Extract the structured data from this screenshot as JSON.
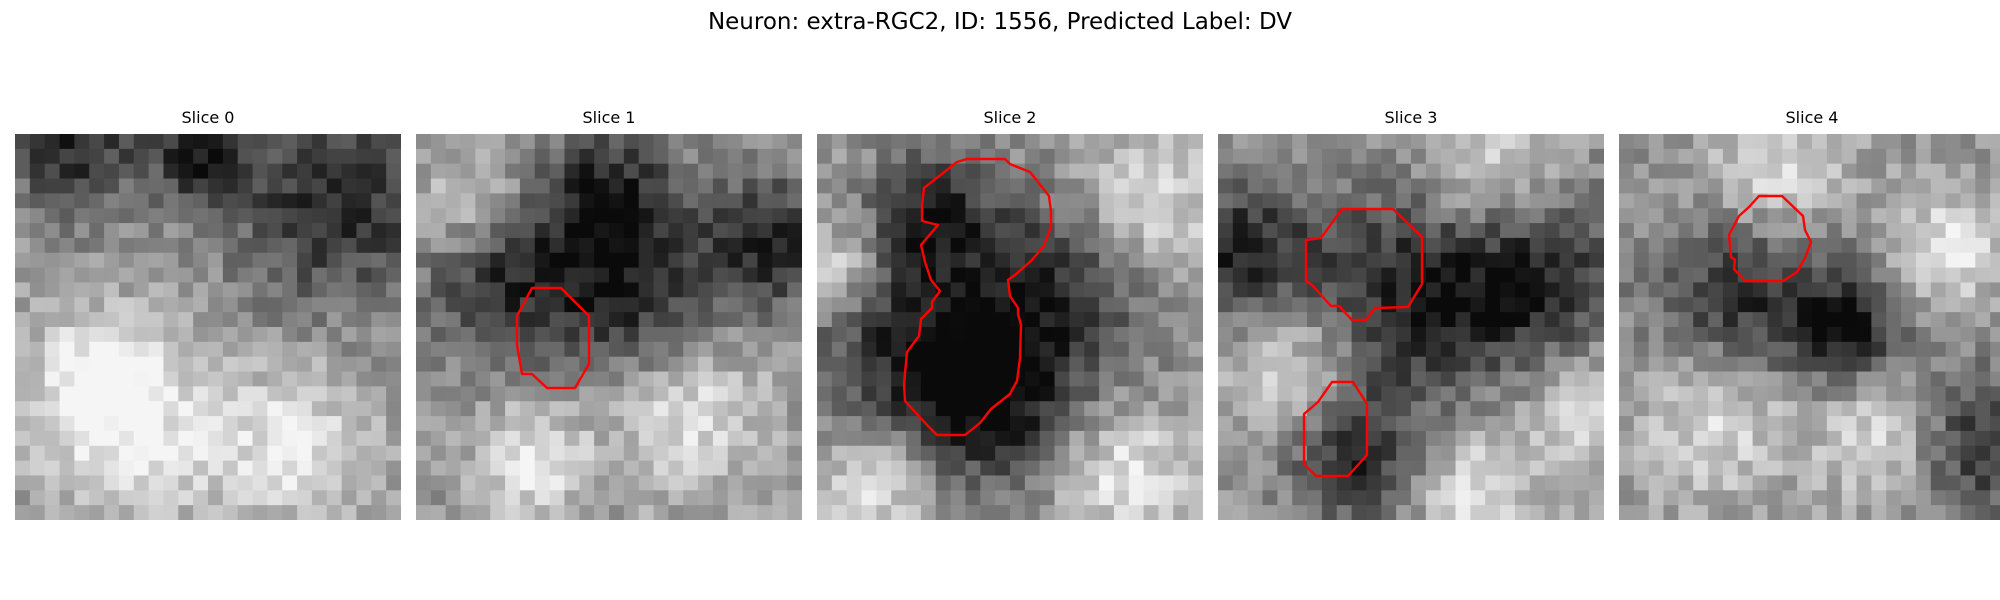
{
  "figure": {
    "title": "Neuron: extra-RGC2, ID: 1556, Predicted Label: DV",
    "outline_color": "#ff0000",
    "colormap": "gray",
    "panels": [
      {
        "title": "Slice 0",
        "seed": 11,
        "dark_blobs": [
          [
            0.15,
            0.03,
            0.3
          ],
          [
            0.48,
            0.05,
            0.22
          ],
          [
            0.83,
            0.18,
            0.45
          ]
        ],
        "bright_blobs": [
          [
            0.3,
            0.78,
            0.4
          ],
          [
            0.72,
            0.8,
            0.35
          ],
          [
            0.2,
            0.62,
            0.28
          ]
        ]
      },
      {
        "title": "Slice 1",
        "seed": 23,
        "dark_blobs": [
          [
            0.22,
            0.35,
            0.35
          ],
          [
            0.55,
            0.42,
            0.38
          ],
          [
            0.92,
            0.28,
            0.3
          ],
          [
            0.5,
            0.15,
            0.28
          ]
        ],
        "bright_blobs": [
          [
            0.7,
            0.72,
            0.35
          ],
          [
            0.3,
            0.85,
            0.25
          ],
          [
            0.15,
            0.2,
            0.25
          ]
        ]
      },
      {
        "title": "Slice 2",
        "seed": 37,
        "dark_blobs": [
          [
            0.25,
            0.55,
            0.45
          ],
          [
            0.63,
            0.4,
            0.42
          ],
          [
            0.45,
            0.7,
            0.35
          ],
          [
            0.3,
            0.2,
            0.25
          ]
        ],
        "bright_blobs": [
          [
            0.85,
            0.2,
            0.35
          ],
          [
            0.8,
            0.88,
            0.3
          ],
          [
            0.15,
            0.9,
            0.28
          ],
          [
            0.05,
            0.35,
            0.2
          ]
        ]
      },
      {
        "title": "Slice 3",
        "seed": 51,
        "dark_blobs": [
          [
            0.47,
            0.42,
            0.48
          ],
          [
            0.82,
            0.38,
            0.4
          ],
          [
            0.05,
            0.3,
            0.3
          ],
          [
            0.37,
            0.85,
            0.3
          ]
        ],
        "bright_blobs": [
          [
            0.2,
            0.6,
            0.3
          ],
          [
            0.65,
            0.92,
            0.3
          ],
          [
            0.7,
            0.1,
            0.3
          ],
          [
            0.95,
            0.7,
            0.25
          ]
        ]
      },
      {
        "title": "Slice 4",
        "seed": 67,
        "dark_blobs": [
          [
            0.32,
            0.43,
            0.4
          ],
          [
            0.92,
            0.8,
            0.32
          ],
          [
            0.6,
            0.5,
            0.25
          ]
        ],
        "bright_blobs": [
          [
            0.25,
            0.72,
            0.35
          ],
          [
            0.7,
            0.78,
            0.3
          ],
          [
            0.4,
            0.1,
            0.3
          ],
          [
            0.85,
            0.3,
            0.25
          ]
        ]
      }
    ]
  }
}
